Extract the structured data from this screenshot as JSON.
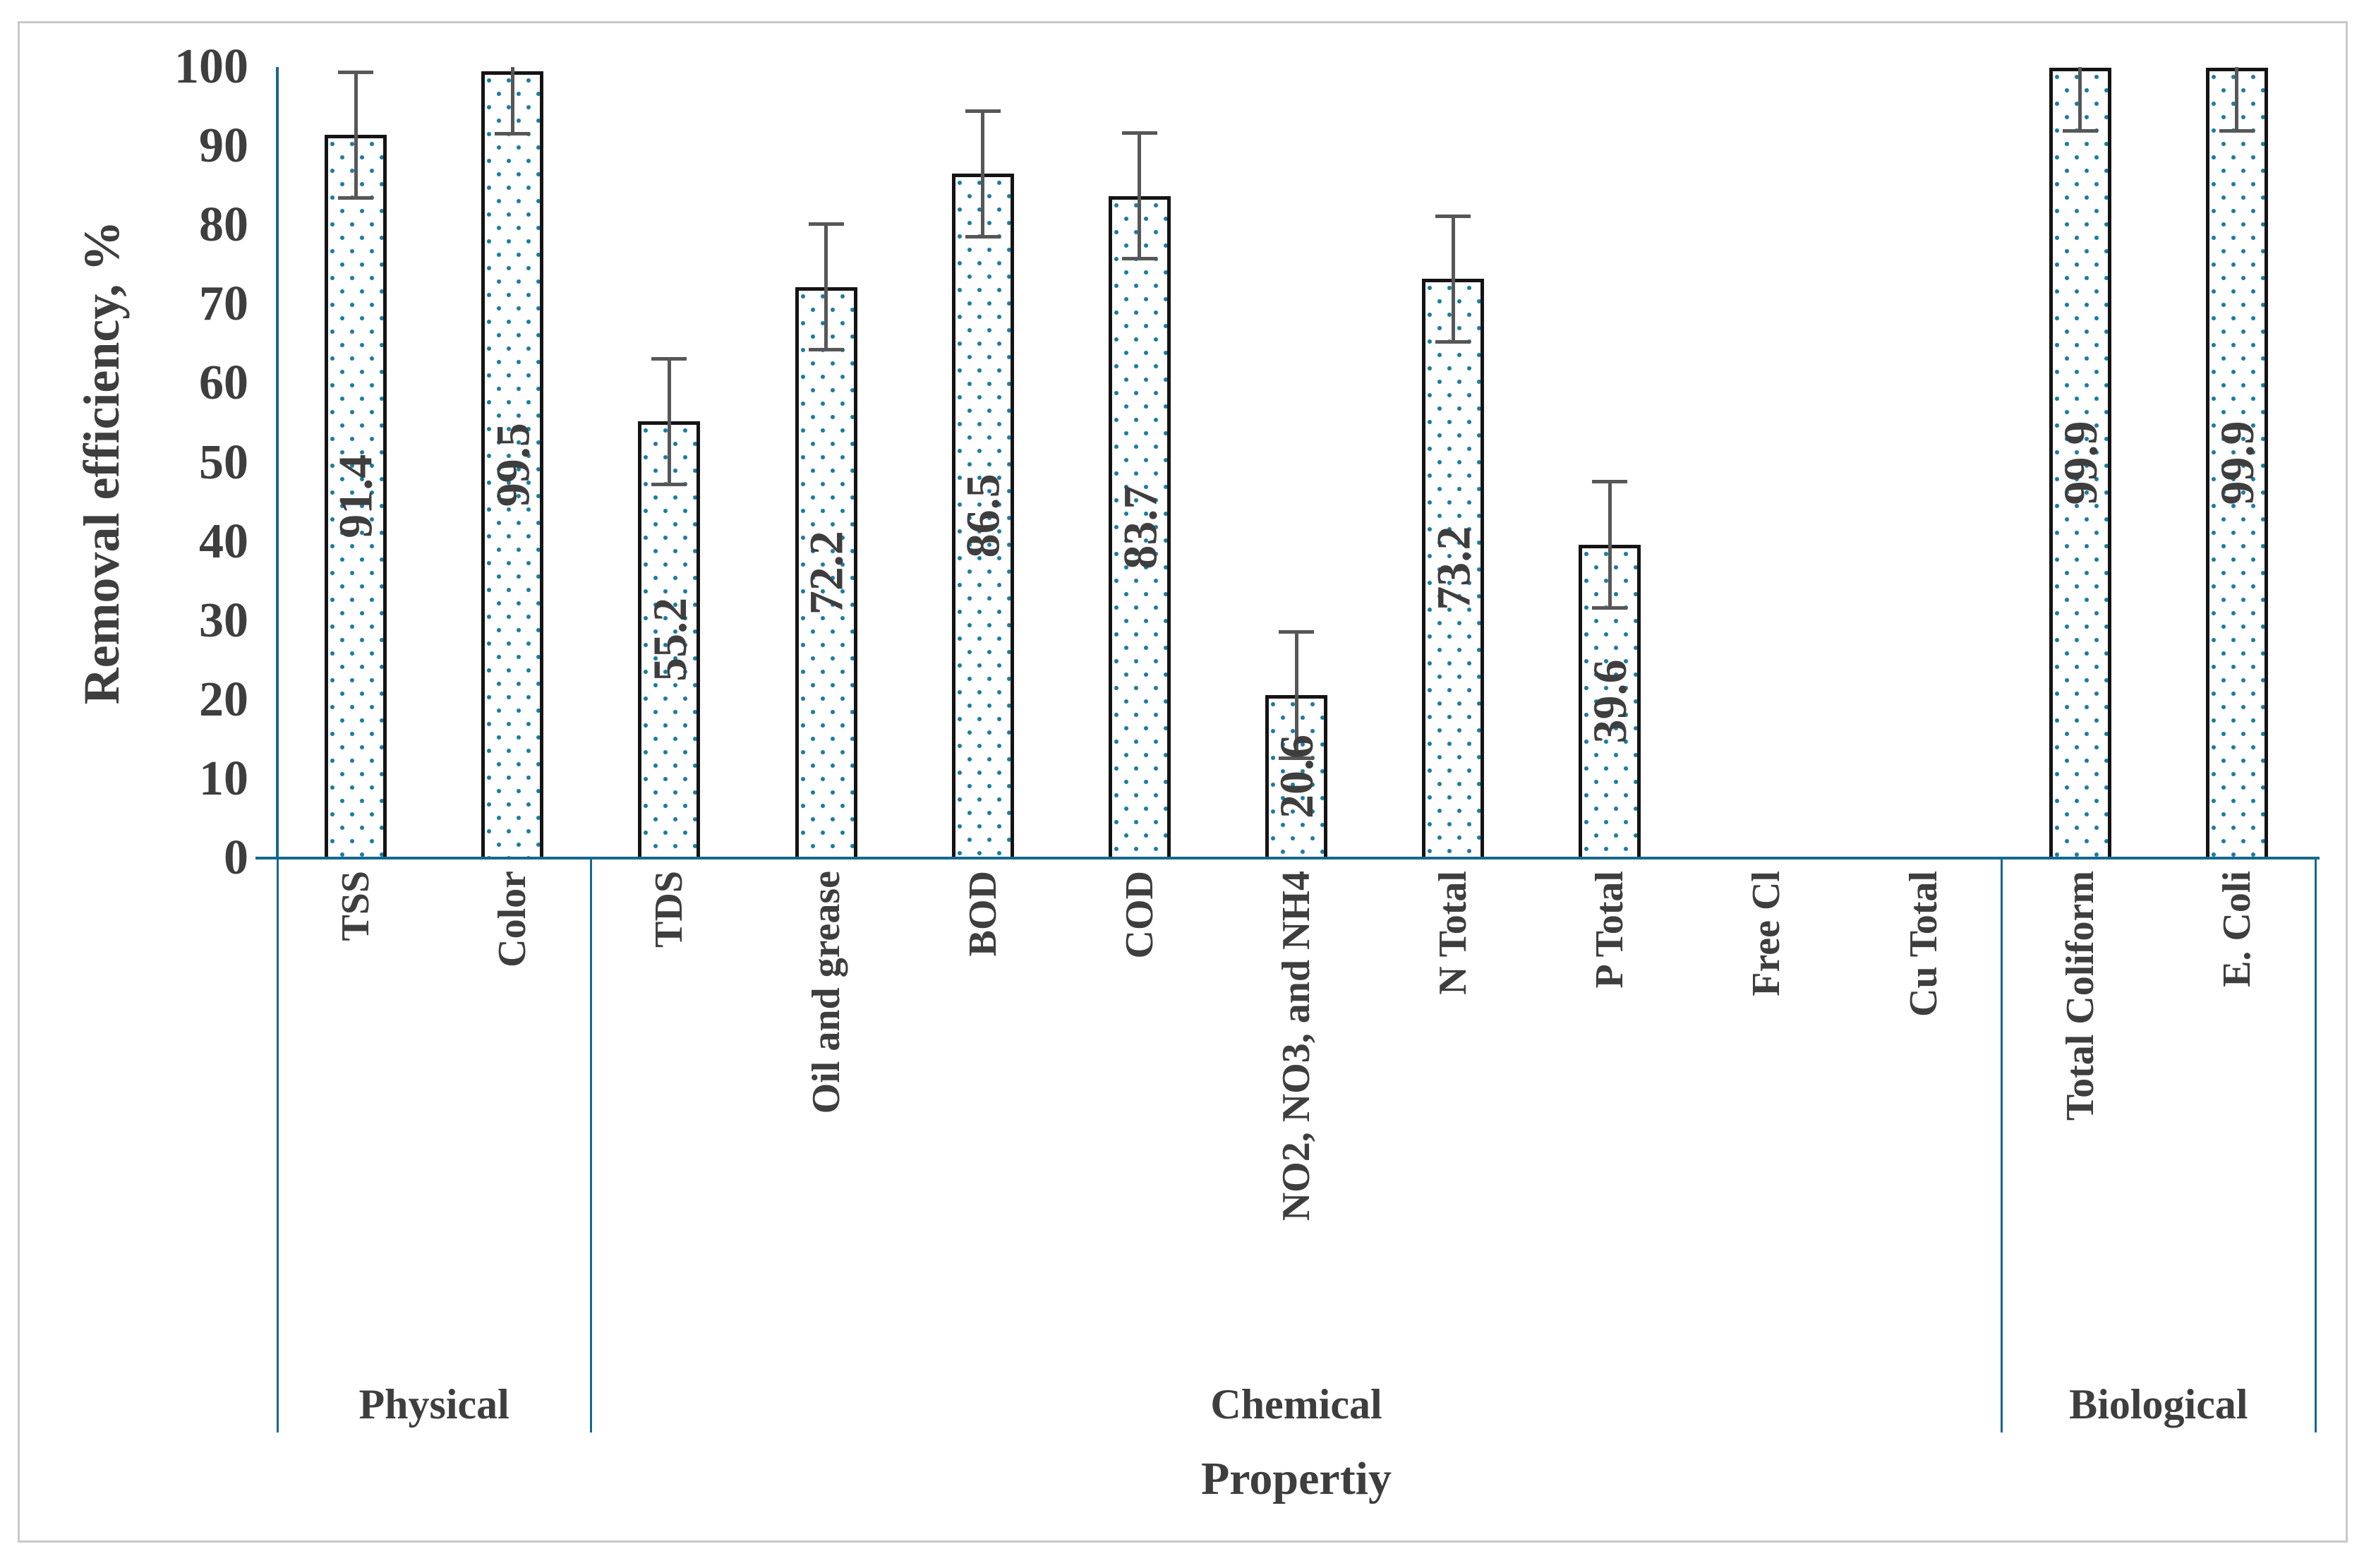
{
  "chart_data": {
    "type": "bar",
    "title": "",
    "ylabel": "Removal efficiency, %",
    "xlabel": "Propertiy",
    "ylim": [
      0,
      100
    ],
    "yticks": [
      "0",
      "10",
      "20",
      "30",
      "40",
      "50",
      "60",
      "70",
      "80",
      "90",
      "100"
    ],
    "grid": "off",
    "legend": "none",
    "categories": [
      "TSS",
      "Color",
      "TDS",
      "Oil and grease",
      "BOD",
      "COD",
      "NO2, NO3, and NH4",
      "N Total",
      "P Total",
      "Free Cl",
      "Cu Total",
      "Total Coliform",
      "E. Coli"
    ],
    "values": [
      91.4,
      99.5,
      55.2,
      72.2,
      86.5,
      83.7,
      20.6,
      73.2,
      39.6,
      0,
      0,
      99.9,
      99.9
    ],
    "data_labels": [
      "91.4",
      "99.5",
      "55.2",
      "72.2",
      "86.5",
      "83.7",
      "20.6",
      "73.2",
      "39.6",
      "",
      "",
      "99.9",
      "99.9"
    ],
    "error_bars": [
      8,
      8,
      8,
      8,
      8,
      8,
      8,
      8,
      8,
      0,
      0,
      8,
      8
    ],
    "groups": [
      {
        "label": "Physical",
        "start": 0,
        "end": 2
      },
      {
        "label": "Chemical",
        "start": 2,
        "end": 11
      },
      {
        "label": "Biological",
        "start": 11,
        "end": 13
      }
    ],
    "bar_style": "white fill with blue dot pattern, dark border",
    "colors": {
      "axis": "#16698c",
      "dots": "#1b7ba1",
      "bar_border": "#141414",
      "error_bar": "#575757",
      "text": "#3e3e3e",
      "figure_frame": "#c9c9c9",
      "background": "#ffffff"
    }
  }
}
